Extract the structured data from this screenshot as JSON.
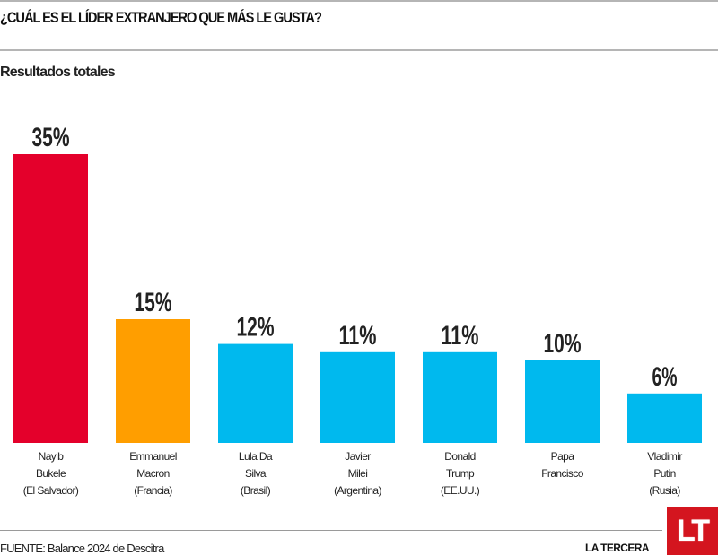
{
  "header": {
    "title": "¿CUÁL ES EL LÍDER EXTRANJERO QUE MÁS LE GUSTA?",
    "subtitle": "Resultados totales"
  },
  "footer": {
    "source": "FUENTE: Balance 2024 de Descitra",
    "brand": "LA TERCERA",
    "logo_text": "LT"
  },
  "colors": {
    "highlight_first": "#e4002b",
    "highlight_second": "#ff9e00",
    "default_bar": "#00b9ee",
    "logo": "#d4151f"
  },
  "chart_data": {
    "type": "bar",
    "title": "¿CUÁL ES EL LÍDER EXTRANJERO QUE MÁS LE GUSTA?",
    "subtitle": "Resultados totales",
    "xlabel": "",
    "ylabel": "",
    "ylim": [
      0,
      35
    ],
    "grid": false,
    "legend": "none",
    "unit": "%",
    "categories": [
      [
        "Nayib",
        "Bukele",
        "(El Salvador)"
      ],
      [
        "Emmanuel",
        "Macron",
        "(Francia)"
      ],
      [
        "Lula Da",
        "Silva",
        "(Brasil)"
      ],
      [
        "Javier",
        "Milei",
        "(Argentina)"
      ],
      [
        "Donald",
        "Trump",
        "(EE.UU.)"
      ],
      [
        "Papa",
        "Francisco"
      ],
      [
        "Vladimir",
        "Putin",
        "(Rusia)"
      ]
    ],
    "values": [
      35,
      15,
      12,
      11,
      11,
      10,
      6
    ],
    "value_labels": [
      "35%",
      "15%",
      "12%",
      "11%",
      "11%",
      "10%",
      "6%"
    ],
    "bar_colors": [
      "#e4002b",
      "#ff9e00",
      "#00b9ee",
      "#00b9ee",
      "#00b9ee",
      "#00b9ee",
      "#00b9ee"
    ]
  }
}
